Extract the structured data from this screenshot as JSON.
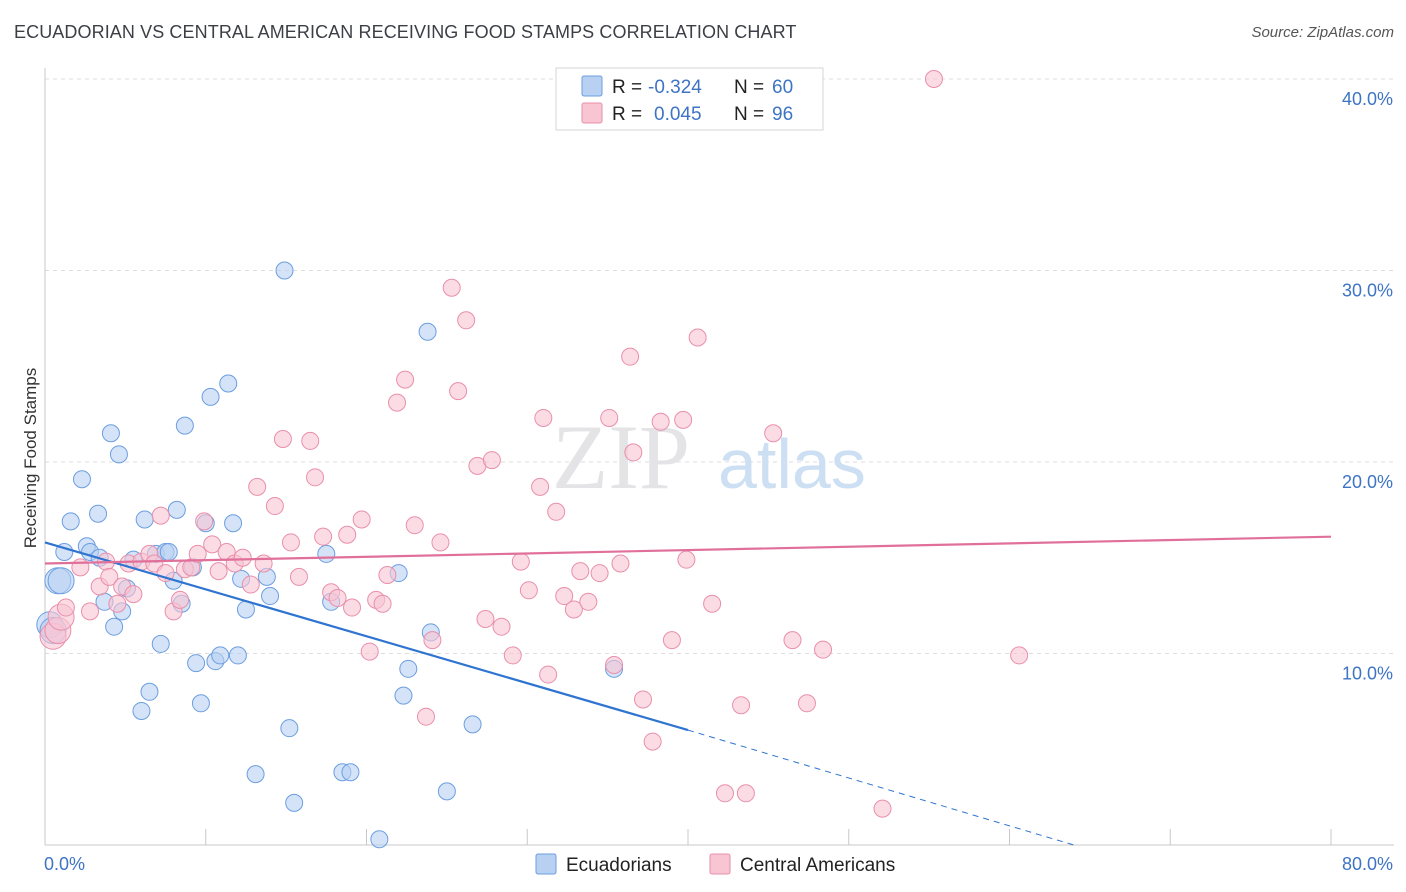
{
  "title": "ECUADORIAN VS CENTRAL AMERICAN RECEIVING FOOD STAMPS CORRELATION CHART",
  "source": "Source: ZipAtlas.com",
  "colors": {
    "ecuadorians_fill": "#b8d0f2",
    "ecuadorians_stroke": "#6c9ee0",
    "ecuadorians_line": "#2f74d0",
    "central_fill": "#f8c5d3",
    "central_stroke": "#e98fab",
    "central_line": "#e0709a",
    "tick": "#3d74c4",
    "grid": "#dcdcdc"
  },
  "legend": {
    "row1": {
      "r_label": "R =",
      "r_value": "-0.324",
      "n_label": "N =",
      "n_value": "60"
    },
    "row2": {
      "r_label": "R =",
      "r_value": "0.045",
      "n_label": "N =",
      "n_value": "96"
    }
  },
  "watermark": {
    "zip": "ZIP",
    "atlas": "atlas"
  },
  "chart_data": {
    "type": "scatter",
    "title": "ECUADORIAN VS CENTRAL AMERICAN RECEIVING FOOD STAMPS CORRELATION CHART",
    "xlabel": "",
    "ylabel": "Receiving Food Stamps",
    "xlim": [
      0,
      80
    ],
    "ylim": [
      0,
      40
    ],
    "x_ticks": [
      {
        "value": 0,
        "label": "0.0%"
      },
      {
        "value": 80,
        "label": "80.0%"
      }
    ],
    "y_ticks": [
      {
        "value": 10,
        "label": "10.0%"
      },
      {
        "value": 20,
        "label": "20.0%"
      },
      {
        "value": 30,
        "label": "30.0%"
      },
      {
        "value": 40,
        "label": "40.0%"
      }
    ],
    "grid": true,
    "legend_position": "top-center",
    "series": [
      {
        "name": "Ecuadorians",
        "r": -0.324,
        "n": 60,
        "trend": {
          "x0": 0,
          "y0": 15.8,
          "x1": 40,
          "y1": 6.0,
          "dashed_to_x": 64,
          "dashed_to_y": 0
        },
        "points": [
          [
            0.3,
            11.5
          ],
          [
            0.5,
            11.2
          ],
          [
            0.8,
            13.8
          ],
          [
            1.0,
            13.8
          ],
          [
            1.2,
            15.3
          ],
          [
            1.6,
            16.9
          ],
          [
            2.3,
            19.1
          ],
          [
            2.6,
            15.6
          ],
          [
            2.8,
            15.3
          ],
          [
            3.3,
            17.3
          ],
          [
            3.4,
            15.0
          ],
          [
            3.7,
            12.7
          ],
          [
            4.1,
            21.5
          ],
          [
            4.3,
            11.4
          ],
          [
            4.6,
            20.4
          ],
          [
            4.8,
            12.2
          ],
          [
            5.1,
            13.4
          ],
          [
            5.5,
            14.9
          ],
          [
            6.0,
            7.0
          ],
          [
            6.2,
            17.0
          ],
          [
            6.5,
            8.0
          ],
          [
            6.9,
            15.2
          ],
          [
            7.2,
            10.5
          ],
          [
            7.5,
            15.3
          ],
          [
            7.7,
            15.3
          ],
          [
            8.0,
            13.8
          ],
          [
            8.2,
            17.5
          ],
          [
            8.5,
            12.6
          ],
          [
            8.7,
            21.9
          ],
          [
            9.2,
            14.5
          ],
          [
            9.4,
            9.5
          ],
          [
            9.7,
            7.4
          ],
          [
            10.0,
            16.8
          ],
          [
            10.3,
            23.4
          ],
          [
            10.6,
            9.6
          ],
          [
            10.9,
            9.9
          ],
          [
            11.4,
            24.1
          ],
          [
            11.7,
            16.8
          ],
          [
            12.0,
            9.9
          ],
          [
            12.2,
            13.9
          ],
          [
            12.5,
            12.3
          ],
          [
            13.1,
            3.7
          ],
          [
            13.8,
            14.0
          ],
          [
            14.0,
            13.0
          ],
          [
            14.9,
            30.0
          ],
          [
            15.2,
            6.1
          ],
          [
            15.5,
            2.2
          ],
          [
            17.5,
            15.2
          ],
          [
            17.8,
            12.7
          ],
          [
            18.5,
            3.8
          ],
          [
            19.0,
            3.8
          ],
          [
            20.8,
            0.3
          ],
          [
            22.0,
            14.2
          ],
          [
            22.3,
            7.8
          ],
          [
            22.6,
            9.2
          ],
          [
            23.8,
            26.8
          ],
          [
            24.0,
            11.1
          ],
          [
            25.0,
            2.8
          ],
          [
            26.6,
            6.3
          ],
          [
            35.4,
            9.2
          ]
        ]
      },
      {
        "name": "Central Americans",
        "r": 0.045,
        "n": 96,
        "trend": {
          "x0": 0,
          "y0": 14.7,
          "x1": 80,
          "y1": 16.1
        },
        "points": [
          [
            0.5,
            10.9
          ],
          [
            0.8,
            11.2
          ],
          [
            1.0,
            11.9
          ],
          [
            1.3,
            12.4
          ],
          [
            2.2,
            14.5
          ],
          [
            2.8,
            12.2
          ],
          [
            3.4,
            13.5
          ],
          [
            3.8,
            14.8
          ],
          [
            4.0,
            14.0
          ],
          [
            4.5,
            12.6
          ],
          [
            4.8,
            13.5
          ],
          [
            5.2,
            14.7
          ],
          [
            5.5,
            13.1
          ],
          [
            6.0,
            14.8
          ],
          [
            6.5,
            15.2
          ],
          [
            6.8,
            14.7
          ],
          [
            7.2,
            17.2
          ],
          [
            7.5,
            14.2
          ],
          [
            8.0,
            12.2
          ],
          [
            8.4,
            12.8
          ],
          [
            8.7,
            14.4
          ],
          [
            9.1,
            14.5
          ],
          [
            9.5,
            15.2
          ],
          [
            9.9,
            16.9
          ],
          [
            10.4,
            15.7
          ],
          [
            10.8,
            14.3
          ],
          [
            11.3,
            15.3
          ],
          [
            11.8,
            14.7
          ],
          [
            12.3,
            15.0
          ],
          [
            12.8,
            13.6
          ],
          [
            13.2,
            18.7
          ],
          [
            13.6,
            14.7
          ],
          [
            14.3,
            17.7
          ],
          [
            14.8,
            21.2
          ],
          [
            15.3,
            15.8
          ],
          [
            15.8,
            14.0
          ],
          [
            16.5,
            21.1
          ],
          [
            16.8,
            19.2
          ],
          [
            17.3,
            16.1
          ],
          [
            17.8,
            13.2
          ],
          [
            18.2,
            12.9
          ],
          [
            18.8,
            16.2
          ],
          [
            19.1,
            12.4
          ],
          [
            19.7,
            17.0
          ],
          [
            20.2,
            10.1
          ],
          [
            20.6,
            12.8
          ],
          [
            21.0,
            12.6
          ],
          [
            21.3,
            14.1
          ],
          [
            21.9,
            23.1
          ],
          [
            22.4,
            24.3
          ],
          [
            23.0,
            16.7
          ],
          [
            23.7,
            6.7
          ],
          [
            24.1,
            10.7
          ],
          [
            24.6,
            15.8
          ],
          [
            25.3,
            29.1
          ],
          [
            25.7,
            23.7
          ],
          [
            26.2,
            27.4
          ],
          [
            26.9,
            19.8
          ],
          [
            27.4,
            11.8
          ],
          [
            27.8,
            20.1
          ],
          [
            28.4,
            11.4
          ],
          [
            29.1,
            9.9
          ],
          [
            29.6,
            14.8
          ],
          [
            30.1,
            13.3
          ],
          [
            30.8,
            18.7
          ],
          [
            31.0,
            22.3
          ],
          [
            31.3,
            8.9
          ],
          [
            31.8,
            17.4
          ],
          [
            32.3,
            13.0
          ],
          [
            32.9,
            12.3
          ],
          [
            33.3,
            14.3
          ],
          [
            33.8,
            12.7
          ],
          [
            34.5,
            14.2
          ],
          [
            35.1,
            22.3
          ],
          [
            35.4,
            9.4
          ],
          [
            35.8,
            14.7
          ],
          [
            36.4,
            25.5
          ],
          [
            36.6,
            20.5
          ],
          [
            37.2,
            7.6
          ],
          [
            37.8,
            5.4
          ],
          [
            38.3,
            22.1
          ],
          [
            39.0,
            10.7
          ],
          [
            39.7,
            22.2
          ],
          [
            39.9,
            14.9
          ],
          [
            40.6,
            26.5
          ],
          [
            41.5,
            12.6
          ],
          [
            42.3,
            2.7
          ],
          [
            43.3,
            7.3
          ],
          [
            43.6,
            2.7
          ],
          [
            45.3,
            21.5
          ],
          [
            46.5,
            10.7
          ],
          [
            47.4,
            7.4
          ],
          [
            48.4,
            10.2
          ],
          [
            52.1,
            1.9
          ],
          [
            55.3,
            40.0
          ],
          [
            60.6,
            9.9
          ]
        ]
      }
    ]
  },
  "bottom_legend": {
    "item1": "Ecuadorians",
    "item2": "Central Americans"
  }
}
